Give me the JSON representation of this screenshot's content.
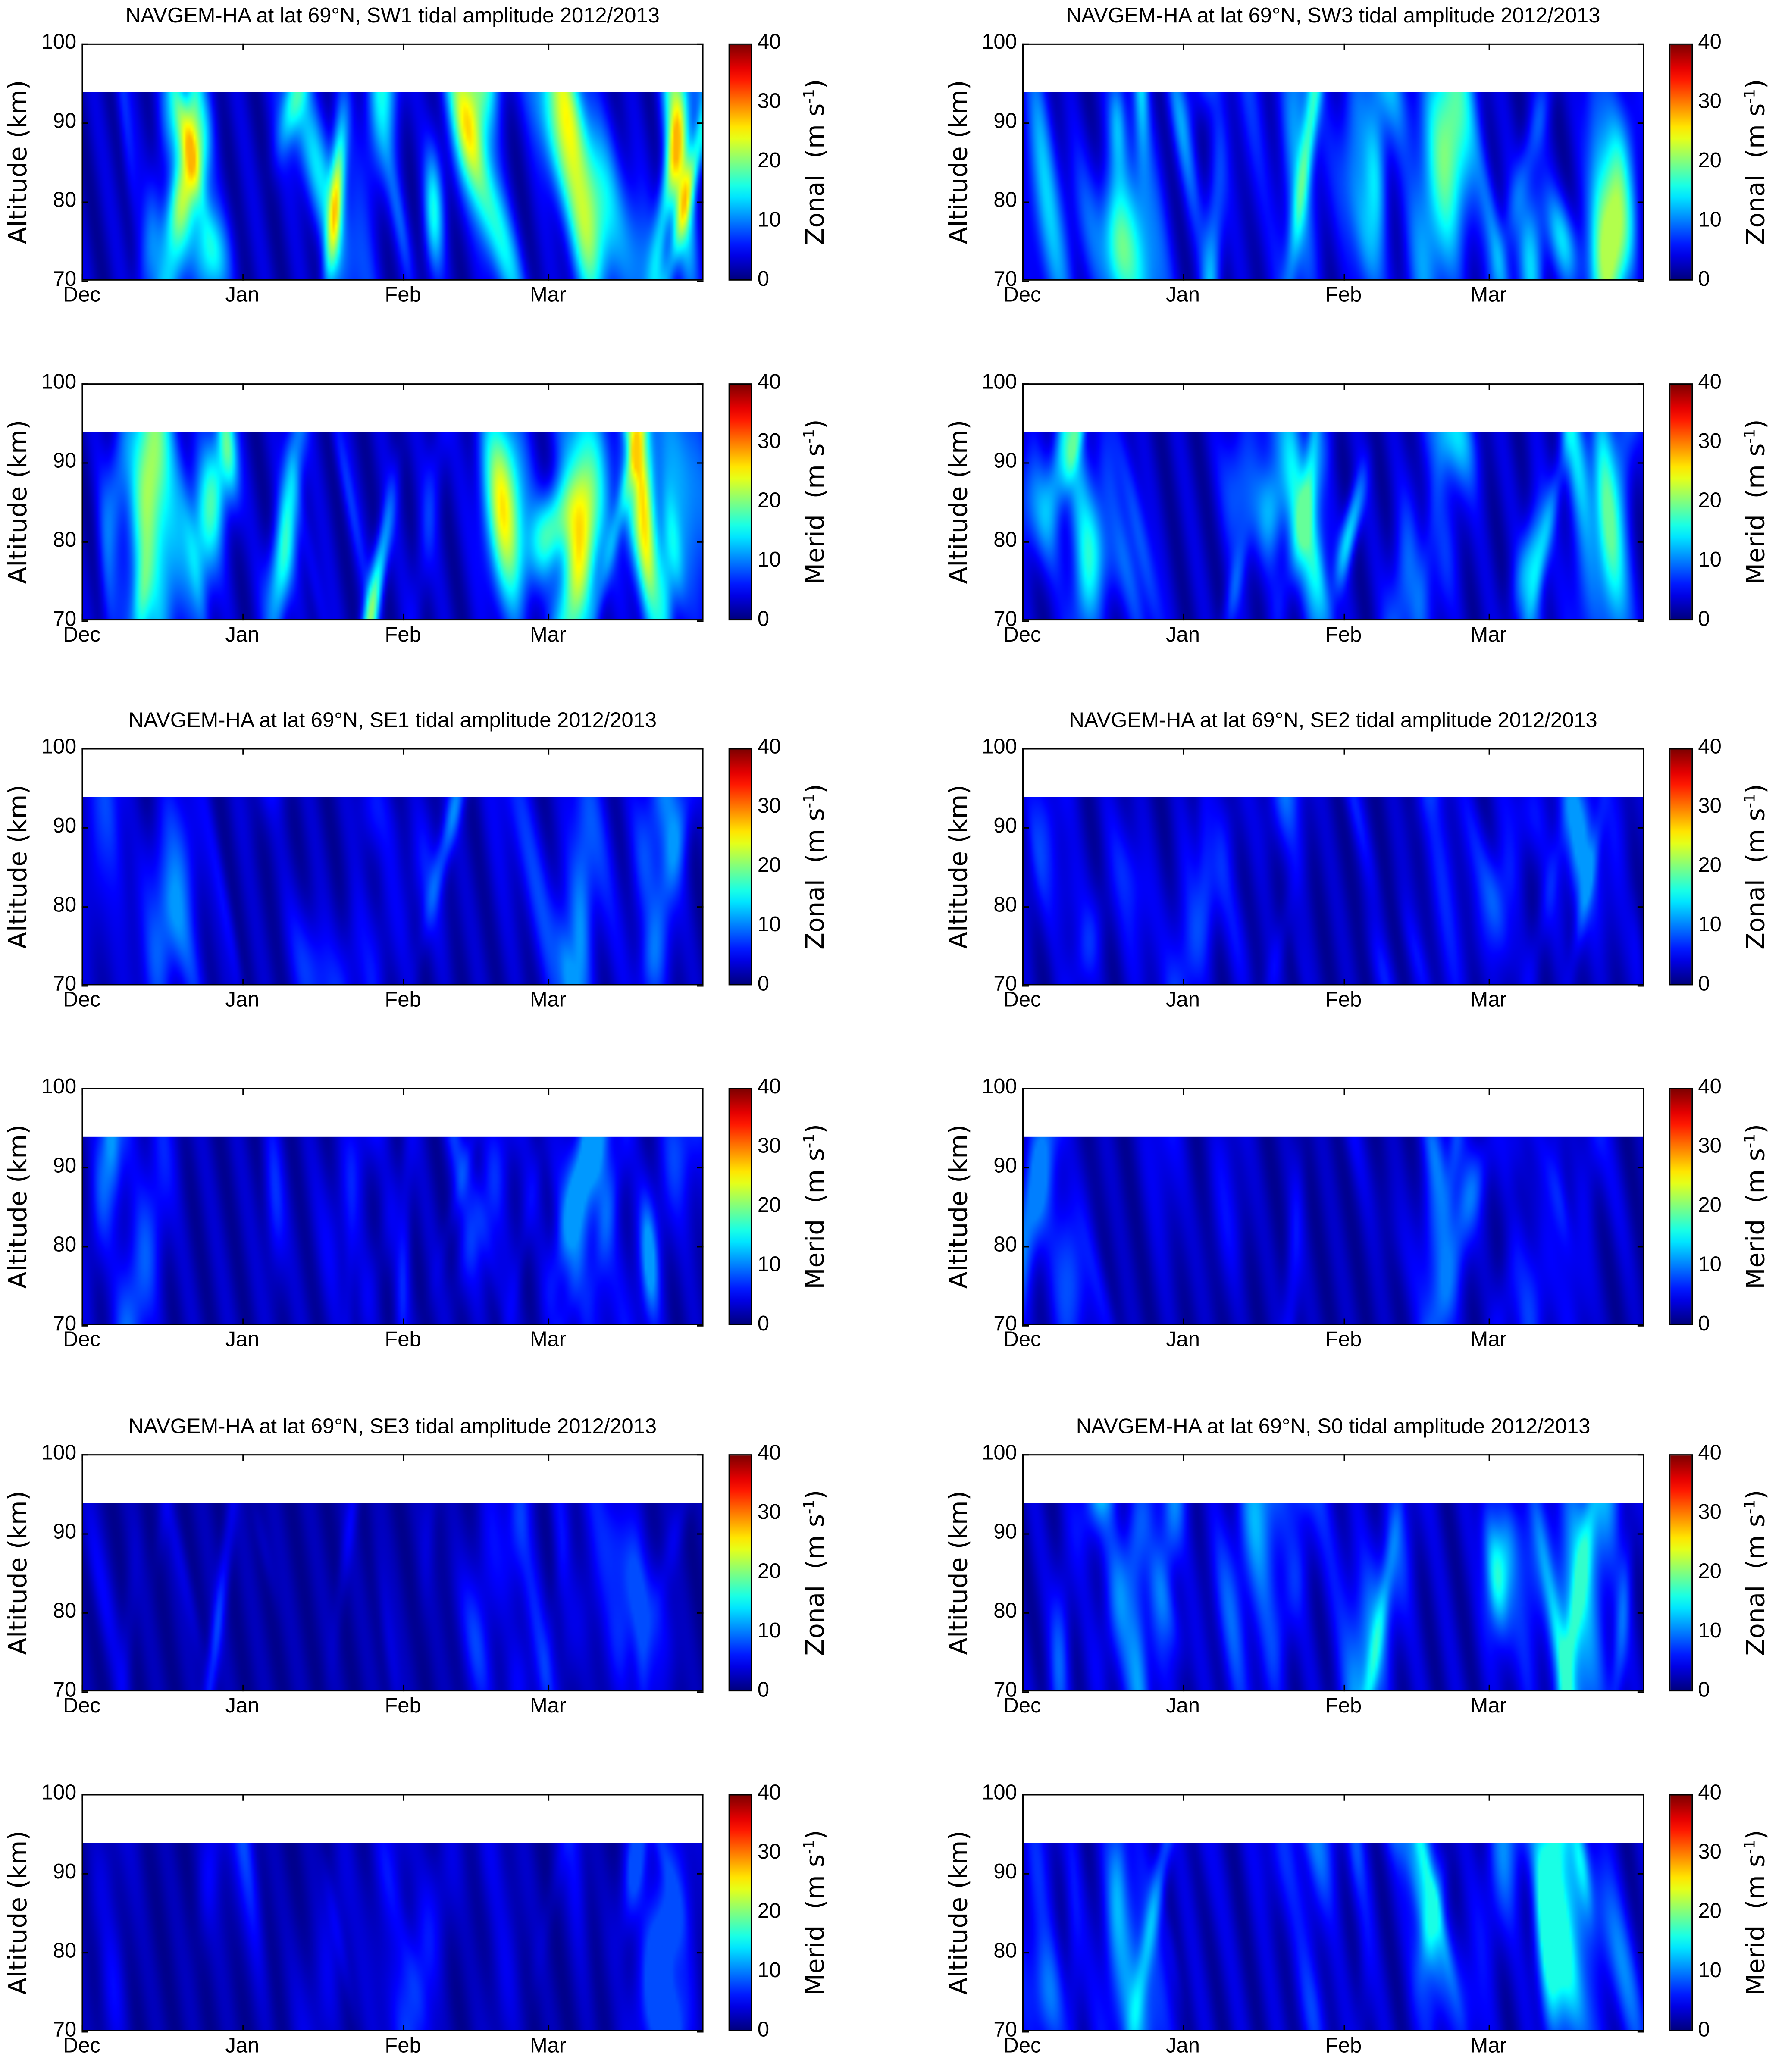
{
  "colormap": "jet",
  "chart_data": {
    "type": "heatmap",
    "x_ticks": [
      "Dec",
      "Jan",
      "Feb",
      "Mar"
    ],
    "x_tick_days": [
      0,
      31,
      62,
      90
    ],
    "xlim_days": [
      0,
      120
    ],
    "y_ticks": [
      "70",
      "80",
      "90",
      "100"
    ],
    "ylim": [
      70,
      100
    ],
    "data_top_km": 94,
    "ylabel": "Altitude  (km)",
    "colorbar_ticks": [
      "0",
      "10",
      "20",
      "30",
      "40"
    ],
    "clim": [
      0,
      40
    ],
    "unit": "m s",
    "unit_sup": "-1",
    "panels": [
      {
        "title": "NAVGEM-HA at lat 69°N, SW1 tidal amplitude 2012/2013",
        "component": "Zonal",
        "max_amplitude_approx": 28
      },
      {
        "title": "NAVGEM-HA at lat 69°N, SW3 tidal amplitude 2012/2013",
        "component": "Zonal",
        "max_amplitude_approx": 22
      },
      {
        "title": "",
        "component": "Merid",
        "max_amplitude_approx": 27
      },
      {
        "title": "",
        "component": "Merid",
        "max_amplitude_approx": 19
      },
      {
        "title": "NAVGEM-HA at lat 69°N, SE1 tidal amplitude 2012/2013",
        "component": "Zonal",
        "max_amplitude_approx": 11
      },
      {
        "title": "NAVGEM-HA at lat 69°N, SE2 tidal amplitude 2012/2013",
        "component": "Zonal",
        "max_amplitude_approx": 11
      },
      {
        "title": "",
        "component": "Merid",
        "max_amplitude_approx": 11
      },
      {
        "title": "",
        "component": "Merid",
        "max_amplitude_approx": 10
      },
      {
        "title": "NAVGEM-HA at lat 69°N, SE3 tidal amplitude 2012/2013",
        "component": "Zonal",
        "max_amplitude_approx": 8
      },
      {
        "title": "NAVGEM-HA at lat 69°N, S0 tidal amplitude 2012/2013",
        "component": "Zonal",
        "max_amplitude_approx": 17
      },
      {
        "title": "",
        "component": "Merid",
        "max_amplitude_approx": 8
      },
      {
        "title": "",
        "component": "Merid",
        "max_amplitude_approx": 16
      }
    ]
  }
}
